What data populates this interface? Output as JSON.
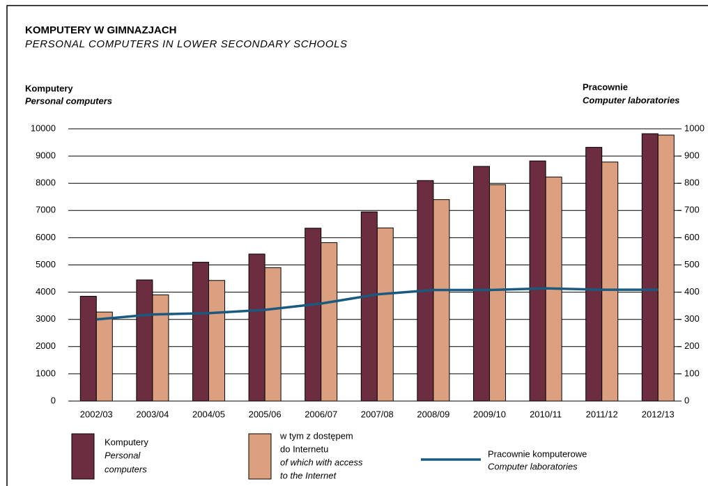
{
  "chart_data": {
    "type": "bar",
    "title": "KOMPUTERY  W  GIMNAZJACH",
    "subtitle": "PERSONAL  COMPUTERS  IN  LOWER  SECONDARY  SCHOOLS",
    "y_label": [
      "Komputery",
      "Personal computers"
    ],
    "y2_label": [
      "Pracownie",
      "Computer laboratories"
    ],
    "categories": [
      "2002/03",
      "2003/04",
      "2004/05",
      "2005/06",
      "2006/07",
      "2007/08",
      "2008/09",
      "2009/10",
      "2010/11",
      "2011/12",
      "2012/13"
    ],
    "series": [
      {
        "name": [
          "Komputery",
          "Personal",
          "computers"
        ],
        "color": "#6b2d3f",
        "type": "bar",
        "values": [
          3850,
          4450,
          5100,
          5400,
          6350,
          6950,
          8100,
          8620,
          8820,
          9320,
          9820
        ]
      },
      {
        "name": [
          "w tym z dostępem",
          "do Internetu",
          "of which with access",
          "to the Internet"
        ],
        "color": "#dca080",
        "type": "bar",
        "values": [
          3270,
          3900,
          4430,
          4900,
          5820,
          6360,
          7400,
          7950,
          8230,
          8780,
          9770
        ]
      },
      {
        "name": [
          "Pracownie komputerowe",
          "Computer laboratories"
        ],
        "color": "#1a5a80",
        "type": "line",
        "axis": "y2",
        "values": [
          300,
          318,
          323,
          335,
          358,
          392,
          408,
          408,
          414,
          409,
          409
        ]
      }
    ],
    "ylim": [
      0,
      10000
    ],
    "yticks": [
      0,
      1000,
      2000,
      3000,
      4000,
      5000,
      6000,
      7000,
      8000,
      9000,
      10000
    ],
    "y2lim": [
      0,
      1000
    ],
    "y2ticks": [
      0,
      100,
      200,
      300,
      400,
      500,
      600,
      700,
      800,
      900,
      1000
    ],
    "grid": true
  }
}
